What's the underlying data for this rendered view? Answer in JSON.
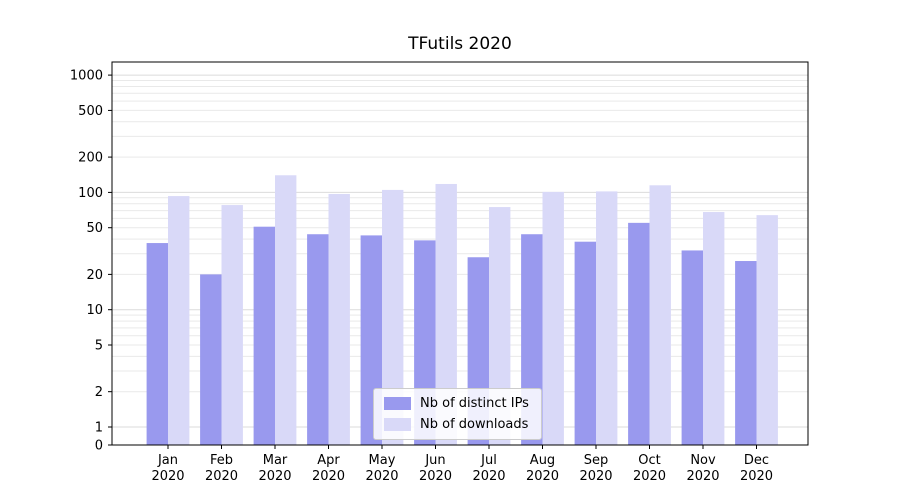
{
  "chart_data": {
    "type": "bar",
    "title": "TFutils 2020",
    "xlabel": "",
    "ylabel": "",
    "scale": "symlog",
    "grid": true,
    "legend_position": "lower center",
    "categories": [
      "Jan",
      "Feb",
      "Mar",
      "Apr",
      "May",
      "Jun",
      "Jul",
      "Aug",
      "Sep",
      "Oct",
      "Nov",
      "Dec"
    ],
    "year_label": "2020",
    "yticks": [
      0,
      1,
      2,
      5,
      10,
      20,
      50,
      100,
      200,
      500,
      1000
    ],
    "ylim": [
      0,
      1000
    ],
    "series": [
      {
        "name": "Nb of distinct IPs",
        "color": "#9999ee",
        "values": [
          37,
          20,
          51,
          44,
          43,
          39,
          28,
          44,
          38,
          55,
          32,
          26
        ]
      },
      {
        "name": "Nb of downloads",
        "color": "#d9d9f8",
        "values": [
          93,
          78,
          140,
          97,
          105,
          118,
          75,
          101,
          102,
          115,
          68,
          64
        ]
      }
    ]
  },
  "colors": {
    "axis": "#000000",
    "grid_minor": "#e9e9e9",
    "grid_major": "#dbdbdb",
    "tick_label": "#000000"
  }
}
